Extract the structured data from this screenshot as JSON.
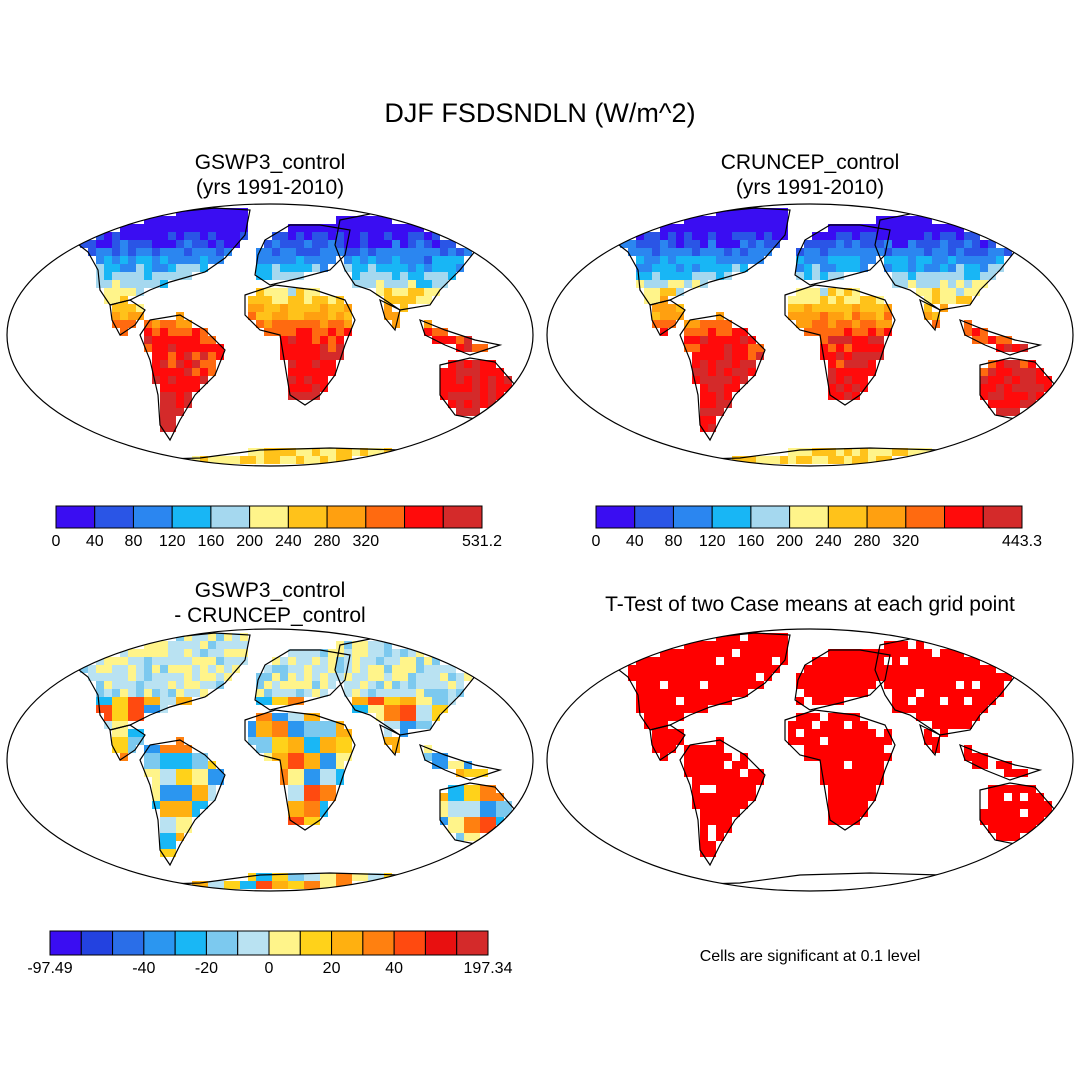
{
  "figure": {
    "title": "DJF FSDSNDLN (W/m^2)"
  },
  "panels": [
    {
      "id": "gswp3",
      "title_line1": "GSWP3_control",
      "title_line2": "(yrs 1991-2010)",
      "colorbar": {
        "colors": [
          "#3a0df2",
          "#2a55e6",
          "#2b86f0",
          "#18b6f5",
          "#a5d8ef",
          "#fff48a",
          "#ffc21a",
          "#ffa010",
          "#ff6a10",
          "#ff0b0b",
          "#d42a2a"
        ],
        "labels": [
          "0",
          "40",
          "80",
          "120",
          "160",
          "200",
          "240",
          "280",
          "320",
          "",
          "531.2"
        ]
      }
    },
    {
      "id": "cruncep",
      "title_line1": "CRUNCEP_control",
      "title_line2": "(yrs 1991-2010)",
      "colorbar": {
        "colors": [
          "#3a0df2",
          "#2a55e6",
          "#2b86f0",
          "#18b6f5",
          "#a5d8ef",
          "#fff48a",
          "#ffc21a",
          "#ffa010",
          "#ff6a10",
          "#ff0b0b",
          "#d42a2a"
        ],
        "labels": [
          "0",
          "40",
          "80",
          "120",
          "160",
          "200",
          "240",
          "280",
          "320",
          "",
          "443.3"
        ]
      }
    },
    {
      "id": "diff",
      "title_line1": "GSWP3_control",
      "title_line2": "- CRUNCEP_control",
      "colorbar": {
        "colors": [
          "#3a0df2",
          "#2342e0",
          "#2a6ee8",
          "#2b96f0",
          "#19b7f5",
          "#7cc9ef",
          "#b9e2f2",
          "#fff48a",
          "#ffd21a",
          "#ffb010",
          "#ff8010",
          "#ff4a10",
          "#e81010",
          "#d42a2a"
        ],
        "labels": [
          "-97.49",
          "",
          "",
          "-40",
          "",
          "-20",
          "",
          "0",
          "",
          "20",
          "",
          "40",
          "",
          "197.34"
        ]
      }
    },
    {
      "id": "ttest",
      "title_line1": "T-Test of two Case means at each grid point",
      "note": "Cells are significant at 0.1 level"
    }
  ]
}
